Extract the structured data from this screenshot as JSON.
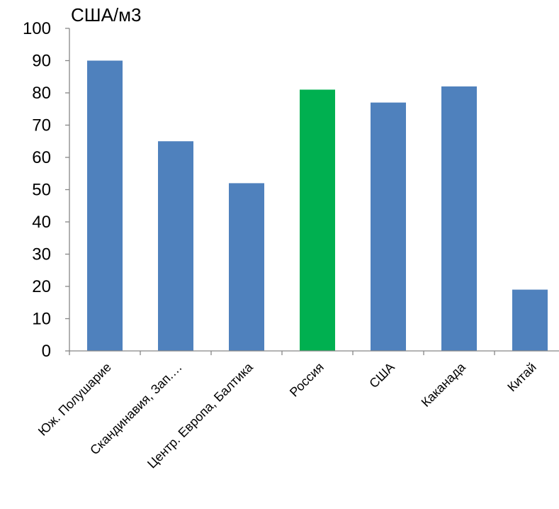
{
  "chart_data": {
    "type": "bar",
    "title": "",
    "ylabel": "США/м3",
    "xlabel": "",
    "categories": [
      "Юж. Полушарие",
      "Скандинавия, Зап.…",
      "Центр. Европа, Балтика",
      "Россия",
      "США",
      "Каканада",
      "Китай"
    ],
    "series": [
      {
        "values": [
          90,
          65,
          52,
          81,
          77,
          82,
          19
        ]
      }
    ],
    "bar_colors": [
      "#4f81bd",
      "#4f81bd",
      "#4f81bd",
      "#00b050",
      "#4f81bd",
      "#4f81bd",
      "#4f81bd"
    ],
    "ylim": [
      0,
      100
    ],
    "yticks": [
      0,
      10,
      20,
      30,
      40,
      50,
      60,
      70,
      80,
      90,
      100
    ],
    "grid": false,
    "legend": "none"
  }
}
